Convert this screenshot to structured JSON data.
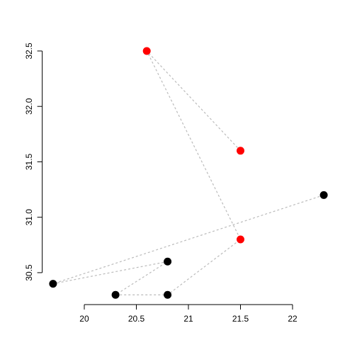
{
  "chart_data": {
    "type": "scatter",
    "x": [
      21.5,
      20.6,
      21.5,
      20.8,
      20.3,
      20.8,
      19.7,
      22.3
    ],
    "y": [
      31.6,
      32.5,
      30.8,
      30.3,
      30.3,
      30.6,
      30.4,
      31.2
    ],
    "point_colors": [
      "#ff0000",
      "#ff0000",
      "#ff0000",
      "#000000",
      "#000000",
      "#000000",
      "#000000",
      "#000000"
    ],
    "line_color": "#bbbbbb",
    "line_dash": true,
    "xlim": [
      19.596,
      22.404
    ],
    "ylim": [
      30.212,
      32.588
    ],
    "xticks": [
      20,
      20.5,
      21,
      21.5,
      22
    ],
    "yticks": [
      30.5,
      {
        "value": 31,
        "label": "31.0"
      },
      31.5,
      {
        "value": 32,
        "label": "32.0"
      },
      32.5
    ]
  }
}
